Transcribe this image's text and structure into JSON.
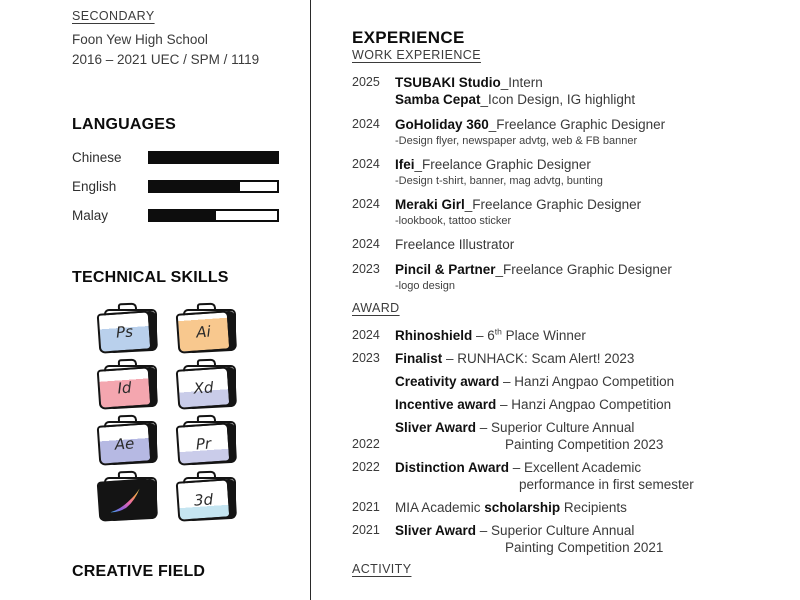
{
  "colors": {
    "text_dark": "#101010",
    "text_body": "#3a3a3a",
    "bar_fill": "#0d0d0d",
    "divider": "#2a2a2a",
    "procreate_gradient": [
      "#3fa8e8",
      "#8e5fd8",
      "#e866b0",
      "#f49a4e",
      "#f7e36b"
    ]
  },
  "education": {
    "heading": "SECONDARY",
    "school": "Foon Yew High School",
    "years": "2016 – 2021 UEC / SPM / 1119"
  },
  "languages": {
    "heading": "LANGUAGES",
    "items": [
      {
        "label": "Chinese",
        "level": 100
      },
      {
        "label": "English",
        "level": 71
      },
      {
        "label": "Malay",
        "level": 52
      }
    ]
  },
  "skills": {
    "heading": "TECHNICAL SKILLS",
    "folders": [
      {
        "label": "Ps",
        "color": "#b9d0ec",
        "fill": 62
      },
      {
        "label": "Ai",
        "color": "#f8c88e",
        "fill": 85
      },
      {
        "label": "Id",
        "color": "#f4a6af",
        "fill": 72
      },
      {
        "label": "Xd",
        "color": "#c9cce9",
        "fill": 42
      },
      {
        "label": "Ae",
        "color": "#b6b9e3",
        "fill": 62
      },
      {
        "label": "Pr",
        "color": "#caccea",
        "fill": 32
      },
      {
        "label": "procreate",
        "icon": "procreate-brush-icon",
        "color": "#141414",
        "fill": 85
      },
      {
        "label": "3d",
        "color": "#c5e5f1",
        "fill": 32
      }
    ]
  },
  "creative": {
    "heading": "CREATIVE FIELD"
  },
  "experience": {
    "heading": "EXPERIENCE",
    "work": {
      "heading": "WORK EXPERIENCE",
      "items": [
        {
          "year": "2025",
          "lines": [
            {
              "bold": "TSUBAKI Studio",
              "text": "_Intern"
            },
            {
              "bold": "Samba Cepat",
              "text": "_Icon Design, IG highlight"
            }
          ]
        },
        {
          "year": "2024",
          "lines": [
            {
              "bold": "GoHoliday 360",
              "text": "_Freelance Graphic Designer"
            }
          ],
          "detail": "-Design flyer, newspaper advtg, web & FB banner"
        },
        {
          "year": "2024",
          "lines": [
            {
              "bold": "Ifei",
              "text": "_Freelance Graphic Designer"
            }
          ],
          "detail": "-Design t-shirt, banner, mag advtg, bunting"
        },
        {
          "year": "2024",
          "lines": [
            {
              "bold": "Meraki Girl",
              "text": "_Freelance Graphic Designer"
            }
          ],
          "detail": "-lookbook, tattoo sticker"
        },
        {
          "year": "2024",
          "lines": [
            {
              "bold": "",
              "text": "Freelance Illustrator"
            }
          ]
        },
        {
          "year": "2023",
          "lines": [
            {
              "bold": "Pincil & Partner",
              "text": "_Freelance Graphic Designer"
            }
          ],
          "detail": "-logo design"
        }
      ]
    },
    "award": {
      "heading": "AWARD",
      "items": [
        {
          "year": "2024",
          "segments": [
            {
              "b": "Rhinoshield"
            },
            {
              "t": " – 6"
            },
            {
              "sup": "th"
            },
            {
              "t": " Place Winner"
            }
          ]
        },
        {
          "year": "2023",
          "segments": [
            {
              "b": "Finalist"
            },
            {
              "t": " – RUNHACK: Scam Alert! 2023"
            }
          ]
        },
        {
          "year": "",
          "segments": [
            {
              "b": "Creativity award"
            },
            {
              "t": " – Hanzi Angpao Competition"
            }
          ]
        },
        {
          "year": "",
          "segments": [
            {
              "b": "Incentive award"
            },
            {
              "t": " – Hanzi Angpao Competition"
            }
          ]
        },
        {
          "year": "2022",
          "year_on_line2": true,
          "segments": [
            {
              "b": "Sliver Award"
            },
            {
              "t": " – Superior Culture Annual"
            }
          ],
          "line2": "Painting Competition 2023",
          "line2_indent": 110
        },
        {
          "year": "2022",
          "segments": [
            {
              "b": "Distinction Award"
            },
            {
              "t": " – Excellent Academic"
            }
          ],
          "line2": "performance in first semester",
          "line2_indent": 124
        },
        {
          "year": "2021",
          "segments": [
            {
              "t": "MIA Academic "
            },
            {
              "b": "scholarship"
            },
            {
              "t": " Recipients"
            }
          ]
        },
        {
          "year": "2021",
          "segments": [
            {
              "b": "Sliver Award"
            },
            {
              "t": " – Superior Culture Annual"
            }
          ],
          "line2": "Painting Competition 2021",
          "line2_indent": 110
        }
      ]
    },
    "activity": {
      "heading": "ACTIVITY"
    }
  }
}
